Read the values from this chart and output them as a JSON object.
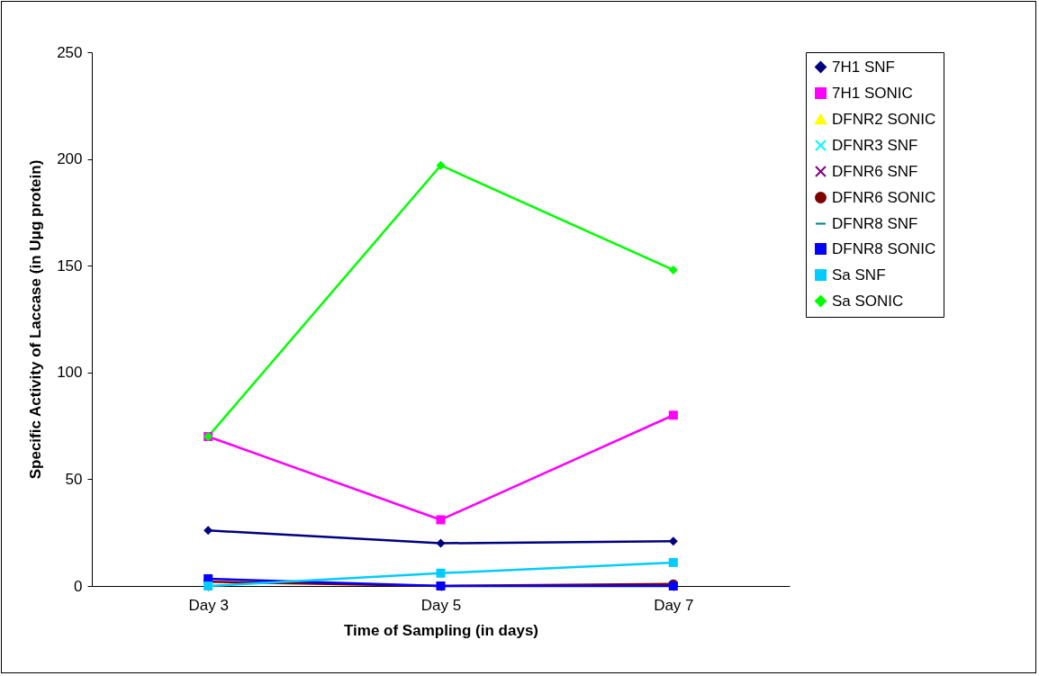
{
  "chart_data": {
    "type": "line",
    "xlabel": "Time of Sampling (in days)",
    "ylabel": "Specific Activity of Laccase (in Uμg protein)",
    "categories": [
      "Day 3",
      "Day 5",
      "Day 7"
    ],
    "ylim": [
      0,
      250
    ],
    "yticks": [
      0,
      50,
      100,
      150,
      200,
      250
    ],
    "grid": false,
    "legend": "right",
    "series": [
      {
        "name": "7H1 SNF",
        "color": "#000080",
        "marker": "diamond",
        "values": [
          26,
          20,
          21
        ]
      },
      {
        "name": "7H1 SONIC",
        "color": "#ff00ff",
        "marker": "square",
        "values": [
          70,
          31,
          80
        ]
      },
      {
        "name": "DFNR2 SONIC",
        "color": "#ffff00",
        "marker": "triangle",
        "values": [
          null,
          null,
          null
        ]
      },
      {
        "name": "DFNR3 SNF",
        "color": "#00ffff",
        "marker": "cross",
        "values": [
          null,
          null,
          null
        ]
      },
      {
        "name": "DFNR6 SNF",
        "color": "#800080",
        "marker": "cross",
        "values": [
          null,
          null,
          null
        ]
      },
      {
        "name": "DFNR6 SONIC",
        "color": "#800000",
        "marker": "circle",
        "values": [
          2,
          0,
          1
        ]
      },
      {
        "name": "DFNR8 SNF",
        "color": "#008080",
        "values": [
          null,
          null,
          null
        ]
      },
      {
        "name": "DFNR8 SONIC",
        "color": "#0000ff",
        "marker": "square",
        "values": [
          3.4,
          0,
          0
        ]
      },
      {
        "name": "Sa SNF",
        "color": "#00ccff",
        "marker": "square",
        "values": [
          0,
          6,
          11
        ]
      },
      {
        "name": "Sa SONIC",
        "color": "#00ff00",
        "marker": "diamond",
        "values": [
          70,
          197,
          148
        ]
      }
    ]
  }
}
